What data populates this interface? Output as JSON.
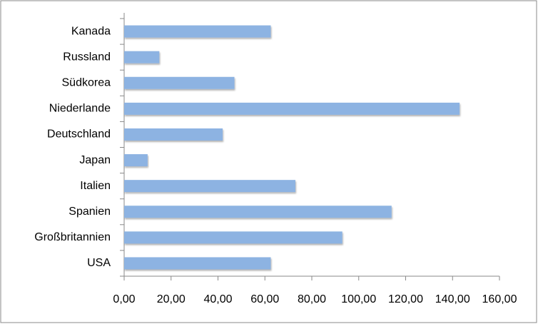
{
  "chart_data": {
    "type": "barh",
    "categories": [
      "Kanada",
      "Russland",
      "Südkorea",
      "Niederlande",
      "Deutschland",
      "Japan",
      "Italien",
      "Spanien",
      "Großbritannien",
      "USA"
    ],
    "values": [
      62.5,
      15,
      47,
      143,
      42,
      10,
      73,
      114,
      93,
      62.5
    ],
    "color": "#8db3e2",
    "xlim": [
      0,
      160
    ],
    "xticks": [
      {
        "value": 0,
        "label": "0,00"
      },
      {
        "value": 20,
        "label": "20,00"
      },
      {
        "value": 40,
        "label": "40,00"
      },
      {
        "value": 60,
        "label": "60,00"
      },
      {
        "value": 80,
        "label": "80,00"
      },
      {
        "value": 100,
        "label": "100,00"
      },
      {
        "value": 120,
        "label": "120,00"
      },
      {
        "value": 140,
        "label": "140,00"
      },
      {
        "value": 160,
        "label": "160,00"
      }
    ],
    "grid": false
  }
}
